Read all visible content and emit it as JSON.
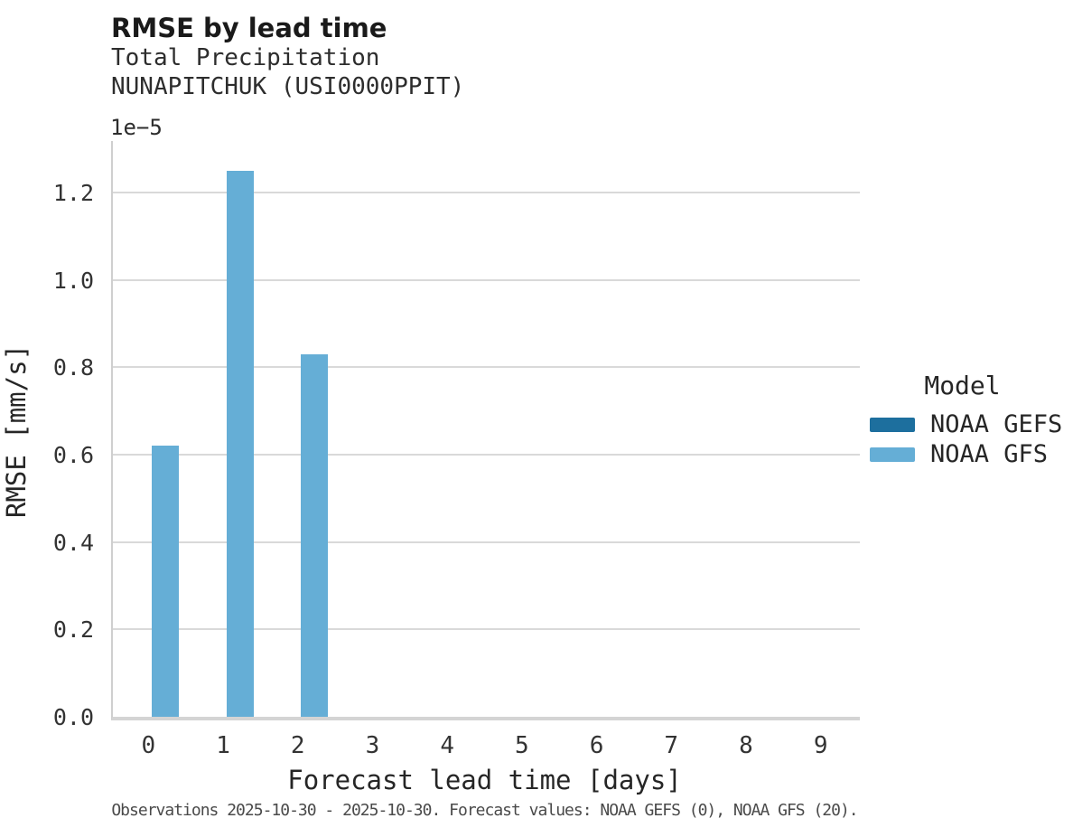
{
  "header": {
    "title": "RMSE by lead time",
    "subtitle_line1": "Total Precipitation",
    "subtitle_line2": "NUNAPITCHUK (USI0000PPIT)"
  },
  "axes": {
    "y_offset_label": "1e−5",
    "ylabel": "RMSE [mm/s]",
    "xlabel": "Forecast lead time [days]"
  },
  "legend": {
    "title": "Model",
    "entries": [
      {
        "label": "NOAA GEFS",
        "color": "#1d6f9e"
      },
      {
        "label": "NOAA GFS",
        "color": "#65aed6"
      }
    ]
  },
  "footer": "Observations 2025-10-30 - 2025-10-30. Forecast values: NOAA GEFS (0), NOAA GFS (20).",
  "colors": {
    "bar_light_blue": "#65aed6",
    "dark_blue": "#1d6f9e",
    "gridline": "#d9d9d9",
    "spine": "#d4d4d4",
    "text_dark": "#1a1a1a",
    "footer_gray": "#4a4a4a"
  },
  "chart_data": {
    "type": "bar",
    "title": "RMSE by lead time",
    "subtitle": [
      "Total Precipitation",
      "NUNAPITCHUK (USI0000PPIT)"
    ],
    "xlabel": "Forecast lead time [days]",
    "ylabel": "RMSE [mm/s]",
    "y_scale_note": "y values shown in units of 1e-5 mm/s",
    "categories": [
      "0",
      "1",
      "2",
      "3",
      "4",
      "5",
      "6",
      "7",
      "8",
      "9"
    ],
    "series": [
      {
        "name": "NOAA GEFS",
        "color": "#1d6f9e",
        "values_1e5": [
          null,
          null,
          null,
          null,
          null,
          null,
          null,
          null,
          null,
          null
        ]
      },
      {
        "name": "NOAA GFS",
        "color": "#65aed6",
        "values_1e5": [
          0.62,
          1.25,
          0.83,
          null,
          null,
          null,
          null,
          null,
          null,
          null
        ]
      }
    ],
    "yticks": [
      "0.0",
      "0.2",
      "0.4",
      "0.6",
      "0.8",
      "1.0",
      "1.2"
    ],
    "ylim_1e5": [
      0,
      1.318
    ],
    "grid": "horizontal",
    "legend_position": "right",
    "legend_title": "Model"
  }
}
